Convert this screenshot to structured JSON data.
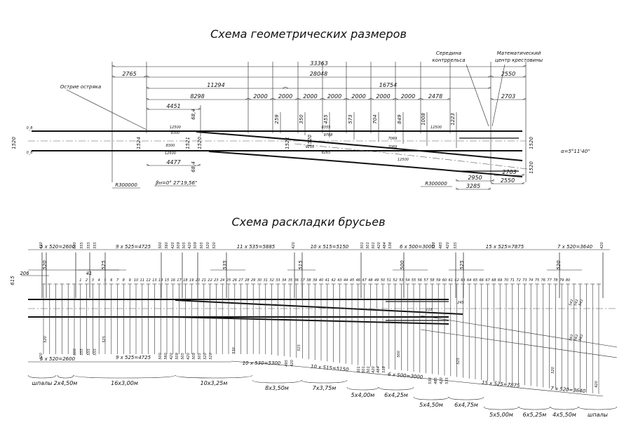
{
  "titles": {
    "geometry": "Схема геометрических размеров",
    "sleepers": "Схема раскладки брусьев"
  },
  "geometry": {
    "annotations": {
      "guard_rail_mid_1": "Середина",
      "guard_rail_mid_2": "контррельса",
      "frog_center_1": "Математический",
      "frog_center_2": "центр крестовины",
      "switch_point": "Острие остряка",
      "radius_left": "R300000",
      "radius_right": "R300000",
      "beta": "βн=0° 27'19,56\"",
      "alpha": "α=5°11'40\""
    },
    "dimensions_top": [
      "33363",
      "2765",
      "28048",
      "2550",
      "11294",
      "16754",
      "8298",
      "2000",
      "2000",
      "2000",
      "2000",
      "2000",
      "2000",
      "2000",
      "2478",
      "2703",
      "4451"
    ],
    "ordinates": [
      "259",
      "350",
      "455",
      "573",
      "704",
      "849",
      "1008",
      "1223"
    ],
    "gauges": [
      "1520",
      "1524",
      "1521",
      "1520",
      "1521",
      "1520",
      "1520",
      "1520",
      "68,4",
      "68,4"
    ],
    "rail_labels": [
      "0_8",
      "0_8",
      "12500",
      "8300",
      "8300",
      "12500",
      "8355",
      "9768",
      "9216",
      "8265",
      "7069",
      "7069",
      "12500",
      "12500"
    ],
    "dimensions_bottom": [
      "4477",
      "2950",
      "3285",
      "2703",
      "2550"
    ]
  },
  "sleepers": {
    "number_range": [
      1,
      80
    ],
    "top_dims": [
      "420",
      "5 x 520=2600",
      "600",
      "555",
      "555",
      "555",
      "9 x 525=4725",
      "500",
      "560",
      "420",
      "509",
      "505",
      "420",
      "509",
      "505",
      "520",
      "520",
      "11 x 535=5885",
      "420",
      "10 x 515=5150",
      "501",
      "501",
      "501",
      "420",
      "484",
      "538",
      "6 x 500=3000",
      "538",
      "485",
      "420",
      "535",
      "15 x 525=7875",
      "7 x 520=3640",
      "420"
    ],
    "top_dims_2": [
      "520",
      "525",
      "535",
      "515",
      "500",
      "525",
      "520",
      "206",
      "41",
      "615"
    ],
    "mid_labels": [
      "218",
      "245",
      "543",
      "543",
      "543",
      "563",
      "563",
      "563"
    ],
    "bottom_dims": [
      "420",
      "5 x 520=2600",
      "520",
      "600",
      "555",
      "555",
      "555",
      "525",
      "9 x 525=4725",
      "500",
      "560",
      "420",
      "509",
      "505",
      "420",
      "509",
      "505",
      "520",
      "520",
      "530",
      "10 x 530=5300",
      "495",
      "420",
      "515",
      "10 x 515=5150",
      "501",
      "501",
      "501",
      "420",
      "484",
      "538",
      "500",
      "6 x 500=3000",
      "538",
      "485",
      "420",
      "535",
      "525",
      "15 x 525=7875",
      "520",
      "7 x 520=3640",
      "420"
    ],
    "groups": [
      "шпалы",
      "2x4,50м",
      "16x3,00м",
      "10x3,25м",
      "8x3,50м",
      "7x3,75м",
      "5x4,00м",
      "6x4,25м",
      "5x4,50м",
      "6x4,75м",
      "5x5,00м",
      "6x5,25м",
      "4x5,50м",
      "шпалы"
    ]
  }
}
